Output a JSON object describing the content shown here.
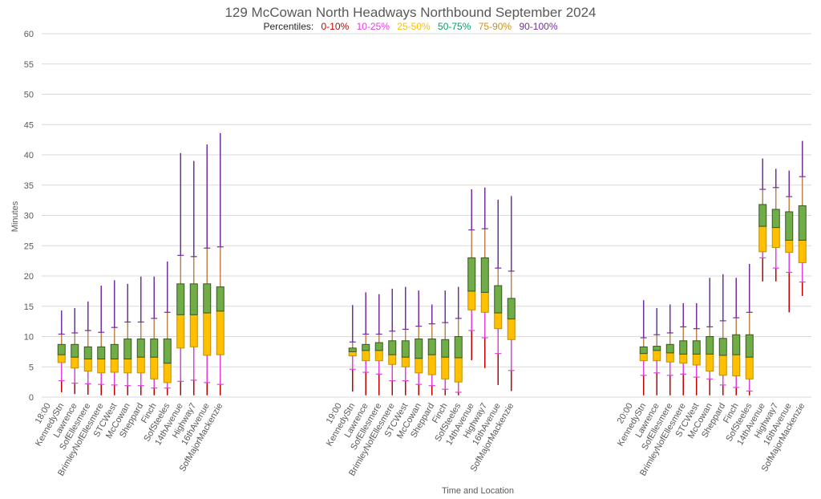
{
  "chart_data": {
    "type": "boxplot-percentiles",
    "title": "129 McCowan North Headways Northbound September 2024",
    "legend": {
      "prefix": "Percentiles:",
      "entries": [
        {
          "label": "0-10%",
          "color": "#C00000"
        },
        {
          "label": "10-25%",
          "color": "#E040E0"
        },
        {
          "label": "25-50%",
          "color": "#FFC000"
        },
        {
          "label": "50-75%",
          "color": "#00A060"
        },
        {
          "label": "75-90%",
          "color": "#C89020"
        },
        {
          "label": "90-100%",
          "color": "#7030A0"
        }
      ]
    },
    "xlabel": "Time and Location",
    "ylabel": "Minutes",
    "ylim": [
      0,
      60
    ],
    "yticks": [
      0,
      5,
      10,
      15,
      20,
      25,
      30,
      35,
      40,
      45,
      50,
      55,
      60
    ],
    "grid": true,
    "percentile_keys": [
      "min",
      "p10",
      "p25",
      "p50",
      "p75",
      "p90",
      "max"
    ],
    "groups": [
      {
        "time": "18:00",
        "stations": [
          {
            "name": "KennedyStn",
            "values": [
              0.8,
              2.7,
              5.7,
              7.0,
              8.7,
              10.4,
              14.3
            ]
          },
          {
            "name": "Lawrence",
            "values": [
              0.5,
              2.3,
              4.8,
              6.6,
              8.7,
              10.6,
              14.7
            ]
          },
          {
            "name": "SofEllesmere",
            "values": [
              0.4,
              2.2,
              4.3,
              6.3,
              8.3,
              11.0,
              15.8
            ]
          },
          {
            "name": "BrimleyNofEllesmere",
            "values": [
              0.3,
              2.1,
              4.0,
              6.3,
              8.3,
              10.7,
              18.4
            ]
          },
          {
            "name": "STCWest",
            "values": [
              0.3,
              2.0,
              4.1,
              6.3,
              8.7,
              11.5,
              19.3
            ]
          },
          {
            "name": "McCowan",
            "values": [
              0.3,
              1.9,
              4.0,
              6.3,
              9.6,
              12.4,
              18.7
            ]
          },
          {
            "name": "Sheppard",
            "values": [
              0.3,
              1.9,
              4.0,
              6.6,
              9.6,
              12.4,
              19.9
            ]
          },
          {
            "name": "Finch",
            "values": [
              0.3,
              1.5,
              3.0,
              6.6,
              9.6,
              13.0,
              19.9
            ]
          },
          {
            "name": "SofSteeles",
            "values": [
              0.3,
              1.5,
              2.4,
              5.6,
              9.6,
              14.0,
              22.4
            ]
          },
          {
            "name": "14thAvenue",
            "values": [
              0.3,
              2.6,
              8.1,
              13.6,
              18.7,
              23.4,
              40.3
            ]
          },
          {
            "name": "Highway7",
            "values": [
              0.3,
              2.8,
              8.3,
              13.6,
              18.7,
              23.2,
              39.0
            ]
          },
          {
            "name": "16thAvenue",
            "values": [
              0.3,
              2.4,
              6.9,
              13.9,
              18.7,
              24.6,
              41.7
            ]
          },
          {
            "name": "SofMajorMackenzie",
            "values": [
              0.3,
              2.1,
              7.0,
              14.2,
              18.2,
              24.8,
              43.6
            ]
          }
        ]
      },
      {
        "time": "19:00",
        "stations": [
          {
            "name": "KennedyStn",
            "values": [
              0.9,
              4.6,
              6.8,
              7.5,
              8.1,
              9.1,
              15.2
            ]
          },
          {
            "name": "Lawrence",
            "values": [
              0.3,
              4.1,
              6.0,
              7.7,
              8.7,
              10.4,
              17.3
            ]
          },
          {
            "name": "SofEllesmere",
            "values": [
              0.3,
              3.8,
              6.0,
              7.7,
              9.0,
              10.4,
              17.0
            ]
          },
          {
            "name": "BrimleyNofEllesmere",
            "values": [
              0.3,
              2.7,
              5.4,
              7.0,
              9.3,
              10.9,
              17.9
            ]
          },
          {
            "name": "STCWest",
            "values": [
              0.3,
              2.7,
              5.0,
              6.6,
              9.3,
              11.2,
              18.2
            ]
          },
          {
            "name": "McCowan",
            "values": [
              0.3,
              2.1,
              4.0,
              6.4,
              9.6,
              11.7,
              17.6
            ]
          },
          {
            "name": "Sheppard",
            "values": [
              0.3,
              1.9,
              3.7,
              7.0,
              9.6,
              12.1,
              15.3
            ]
          },
          {
            "name": "Finch",
            "values": [
              0.3,
              1.3,
              3.0,
              6.6,
              9.5,
              12.3,
              17.6
            ]
          },
          {
            "name": "SofSteeles",
            "values": [
              0.3,
              0.8,
              2.5,
              6.5,
              10.0,
              13.0,
              18.2
            ]
          },
          {
            "name": "14thAvenue",
            "values": [
              6.1,
              11.0,
              14.4,
              17.5,
              23.0,
              27.6,
              34.3
            ]
          },
          {
            "name": "Highway7",
            "values": [
              4.8,
              9.8,
              14.0,
              17.3,
              23.0,
              27.8,
              34.6
            ]
          },
          {
            "name": "16thAvenue",
            "values": [
              2.0,
              7.2,
              11.3,
              13.9,
              18.4,
              21.3,
              32.6
            ]
          },
          {
            "name": "SofMajorMackenzie",
            "values": [
              1.0,
              4.4,
              9.5,
              12.9,
              16.3,
              20.8,
              33.2
            ]
          }
        ]
      },
      {
        "time": "20:00",
        "stations": [
          {
            "name": "KennedyStn",
            "values": [
              0.3,
              3.6,
              6.0,
              7.2,
              8.3,
              9.8,
              16.0
            ]
          },
          {
            "name": "Lawrence",
            "values": [
              0.3,
              4.0,
              6.0,
              7.7,
              8.4,
              10.3,
              14.7
            ]
          },
          {
            "name": "SofEllesmere",
            "values": [
              0.3,
              3.6,
              5.8,
              7.3,
              8.7,
              10.6,
              15.3
            ]
          },
          {
            "name": "BrimleyNofEllesmere",
            "values": [
              0.3,
              3.8,
              5.6,
              7.1,
              9.3,
              11.6,
              15.5
            ]
          },
          {
            "name": "STCWest",
            "values": [
              0.3,
              3.3,
              5.3,
              7.1,
              9.3,
              11.3,
              15.5
            ]
          },
          {
            "name": "McCowan",
            "values": [
              0.3,
              3.0,
              4.3,
              7.1,
              10.0,
              11.6,
              19.7
            ]
          },
          {
            "name": "Sheppard",
            "values": [
              0.3,
              2.0,
              3.6,
              6.9,
              9.7,
              12.6,
              20.3
            ]
          },
          {
            "name": "Finch",
            "values": [
              0.3,
              1.6,
              3.5,
              7.0,
              10.3,
              13.1,
              19.7
            ]
          },
          {
            "name": "SofSteeles",
            "values": [
              0.3,
              1.0,
              3.0,
              6.6,
              10.3,
              14.0,
              22.0
            ]
          },
          {
            "name": "14thAvenue",
            "values": [
              19.1,
              23.0,
              24.0,
              28.2,
              31.8,
              34.3,
              39.4
            ]
          },
          {
            "name": "Highway7",
            "values": [
              19.1,
              21.3,
              24.7,
              28.0,
              31.0,
              34.6,
              37.7
            ]
          },
          {
            "name": "16thAvenue",
            "values": [
              14.0,
              20.6,
              23.9,
              25.9,
              30.6,
              33.1,
              37.4
            ]
          },
          {
            "name": "SofMajorMackenzie",
            "values": [
              16.7,
              19.0,
              22.2,
              25.9,
              31.6,
              36.4,
              42.3
            ]
          }
        ]
      }
    ],
    "colors": {
      "whisker_low": "#C00000",
      "whisker_p10_p25": "#E040E0",
      "box_lower": "#FFC000",
      "box_lower_border": "#BF8F00",
      "box_upper": "#70AD47",
      "box_upper_border": "#375623",
      "whisker_p75_p90": "#C0844A",
      "whisker_high": "#7030A0"
    }
  }
}
